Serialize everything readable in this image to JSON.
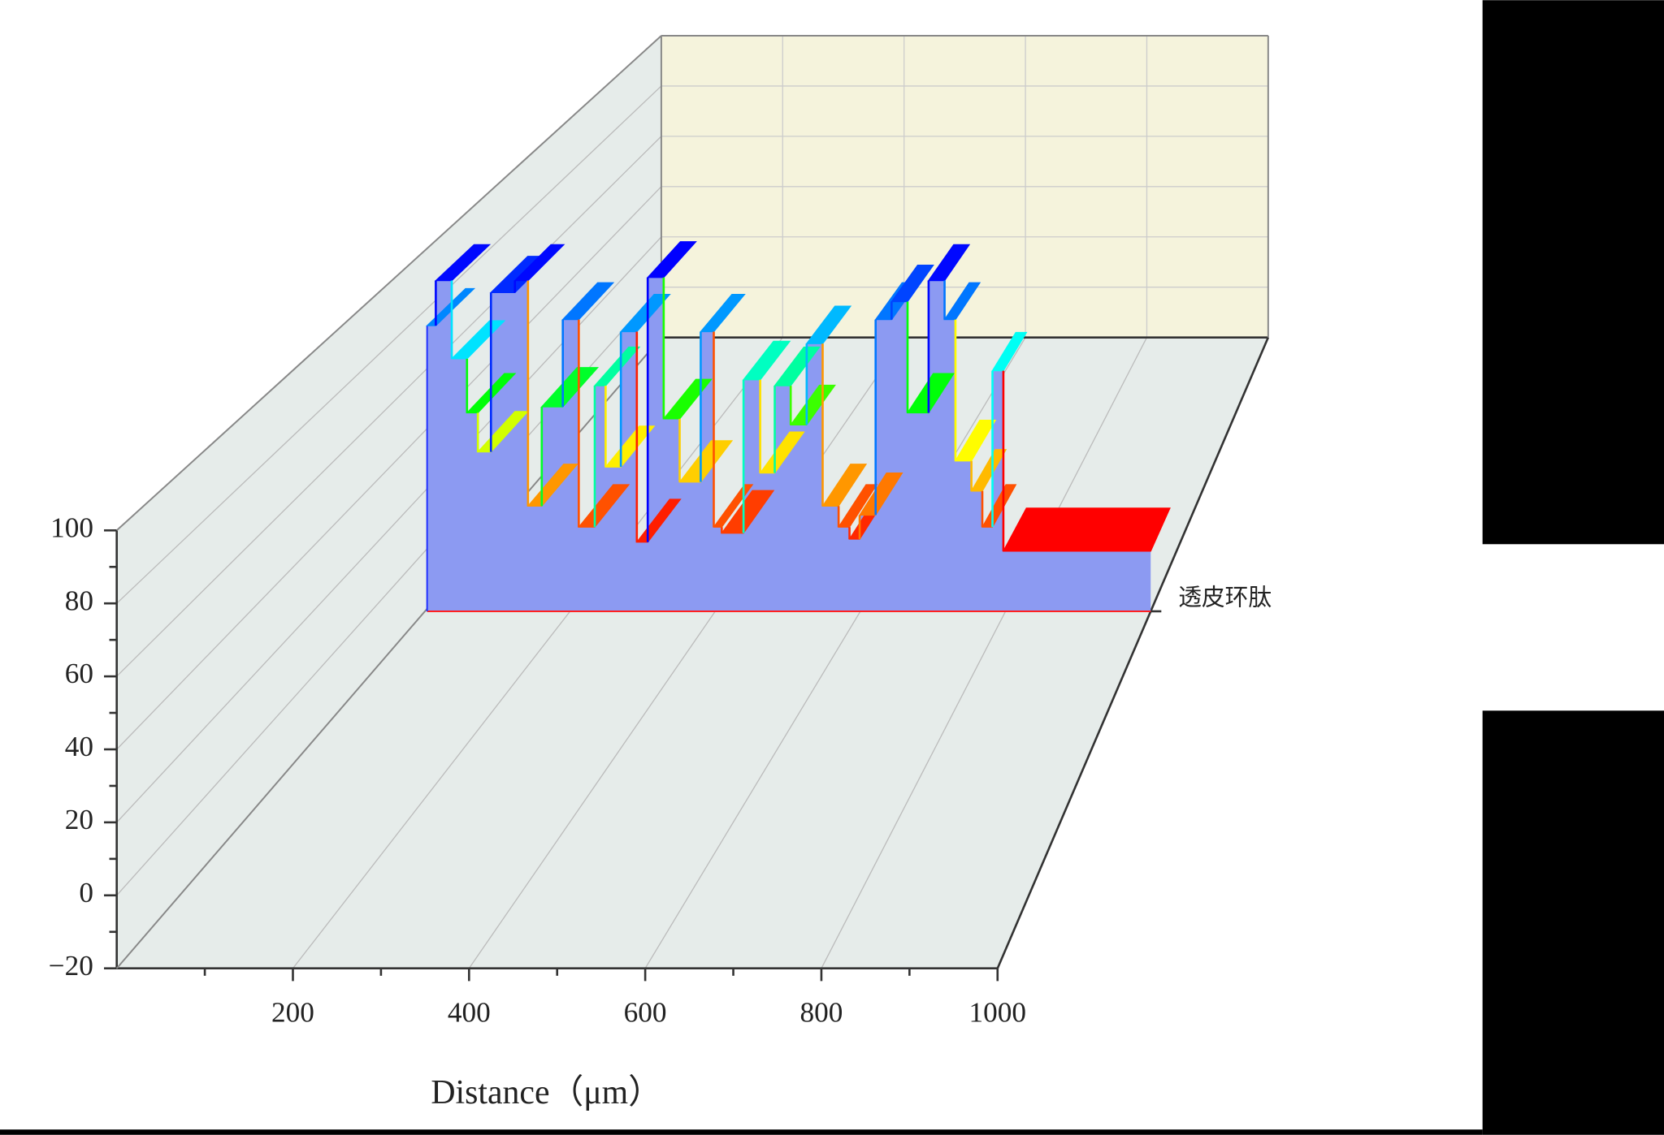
{
  "chart_data": {
    "type": "wall3d",
    "x_label": "Distance（μm）",
    "xlim": [
      0,
      1000
    ],
    "xticks": [
      200,
      400,
      600,
      800,
      1000
    ],
    "xminorticks": [
      100,
      300,
      500,
      700,
      900
    ],
    "ylim": [
      -20,
      100
    ],
    "yticks": [
      {
        "value": -20,
        "label": "−20"
      },
      0,
      20,
      40,
      60,
      80,
      100
    ],
    "yminorticks": [
      -10,
      10,
      30,
      50,
      70,
      90
    ],
    "fill": "#8c9af2",
    "colors": [
      "#ff0000",
      "#ff9900",
      "#ffff00",
      "#00ff00",
      "#00ffff",
      "#0080ff",
      "#0000ff"
    ],
    "series": [
      {
        "name": "透皮环肽",
        "x": [
          3,
          15,
          37,
          58,
          73,
          91,
          124,
          142,
          161,
          190,
          212,
          234,
          249,
          270,
          292,
          307,
          329,
          351,
          380,
          398,
          409,
          439,
          462,
          482,
          504,
          526,
          548,
          570,
          585,
          599,
          621,
          643,
          665,
          694,
          716,
          731,
          753,
          768,
          782,
          797
        ],
        "values": [
          75,
          90,
          64,
          46,
          33,
          86,
          90,
          15,
          48,
          77,
          8,
          55,
          28,
          73,
          3,
          91,
          44,
          23,
          73,
          8,
          6,
          57,
          26,
          55,
          42,
          69,
          15,
          8,
          4,
          12,
          77,
          83,
          46,
          90,
          77,
          30,
          20,
          8,
          60,
          0
        ]
      }
    ]
  }
}
